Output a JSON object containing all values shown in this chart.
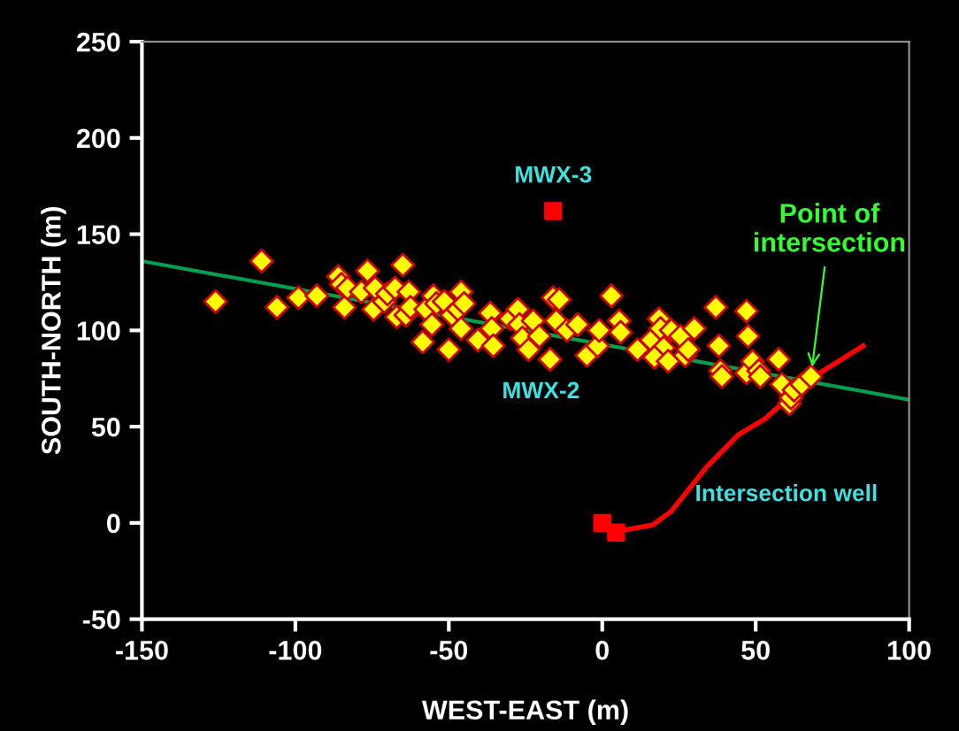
{
  "chart_data": {
    "type": "scatter",
    "xlabel": "WEST-EAST (m)",
    "ylabel": "SOUTH-NORTH (m)",
    "xlim": [
      -150,
      100
    ],
    "xticks": [
      -150,
      -100,
      -50,
      0,
      50,
      100
    ],
    "ylim": [
      -50,
      250
    ],
    "yticks": [
      -50,
      0,
      50,
      100,
      150,
      200,
      250
    ],
    "series": [
      {
        "type": "line",
        "color": "#00a050",
        "marker": "none",
        "line_style": "solid",
        "x": [
          -150,
          100
        ],
        "values": [
          136,
          64
        ]
      },
      {
        "color": "#ffff00",
        "marker": "diamond",
        "x": [
          -126,
          -111,
          -106,
          -99,
          -93,
          -86,
          -85,
          -84,
          -83,
          -78.5,
          -76.5,
          -74.5,
          -74,
          -71,
          -70,
          -67.5,
          -67,
          -65,
          -64,
          -63,
          -62.5,
          -58.5,
          -57.5,
          -55.5,
          -55,
          -54,
          -51.5,
          -50,
          -49,
          -47,
          -46,
          -46,
          -45,
          -40.5,
          -36.5,
          -36,
          -35.5,
          -30,
          -27.5,
          -27,
          -26,
          -24,
          -22.5,
          -20.5,
          -17,
          -16,
          -15,
          -14,
          -11.5,
          -8,
          -5,
          -1.5,
          -1,
          3,
          5.5,
          6,
          11.5,
          16,
          18.5,
          19,
          20,
          17,
          21.5,
          22.5,
          25.5,
          27,
          28,
          30,
          37,
          38,
          38.5,
          39,
          47,
          47.5,
          47,
          49,
          51,
          51.5,
          57.5,
          58.5,
          61,
          61.5,
          62.5,
          65,
          68
        ],
        "values": [
          115,
          136,
          112,
          117,
          118,
          128,
          124,
          112,
          122,
          120,
          131,
          111,
          122,
          115,
          119,
          122,
          107,
          134,
          108,
          120,
          112,
          94,
          111,
          103,
          118,
          114,
          115,
          90,
          108,
          111,
          120,
          101,
          114,
          95,
          109,
          101,
          92,
          106,
          111,
          103,
          96,
          90,
          105,
          97,
          85,
          117,
          105,
          116,
          100,
          103,
          87,
          92,
          100,
          118,
          105,
          99,
          90,
          95,
          106,
          101,
          91,
          86,
          84,
          100,
          97,
          87,
          90,
          101,
          112,
          92,
          79,
          76,
          110,
          97,
          78,
          84,
          79,
          76,
          85,
          72,
          62,
          65,
          69,
          72,
          76
        ]
      },
      {
        "type": "line",
        "color": "#ff0000",
        "marker": "none",
        "line_style": "solid",
        "x": [
          6.5,
          16.5,
          22.5,
          34,
          44.5,
          53,
          67,
          85
        ],
        "values": [
          -4,
          -1,
          6,
          29,
          46,
          54,
          74,
          92
        ]
      },
      {
        "color": "#ff0000",
        "marker": "square",
        "x": [
          0,
          4.5,
          -16
        ],
        "values": [
          0,
          -5,
          162
        ]
      }
    ],
    "annotations": [
      {
        "text": "MWX-3",
        "x": -16,
        "y": 162
      },
      "MWX-2",
      {
        "text": "Point of\nintersection",
        "x": 68,
        "y": 76
      },
      "Intersection well"
    ]
  }
}
